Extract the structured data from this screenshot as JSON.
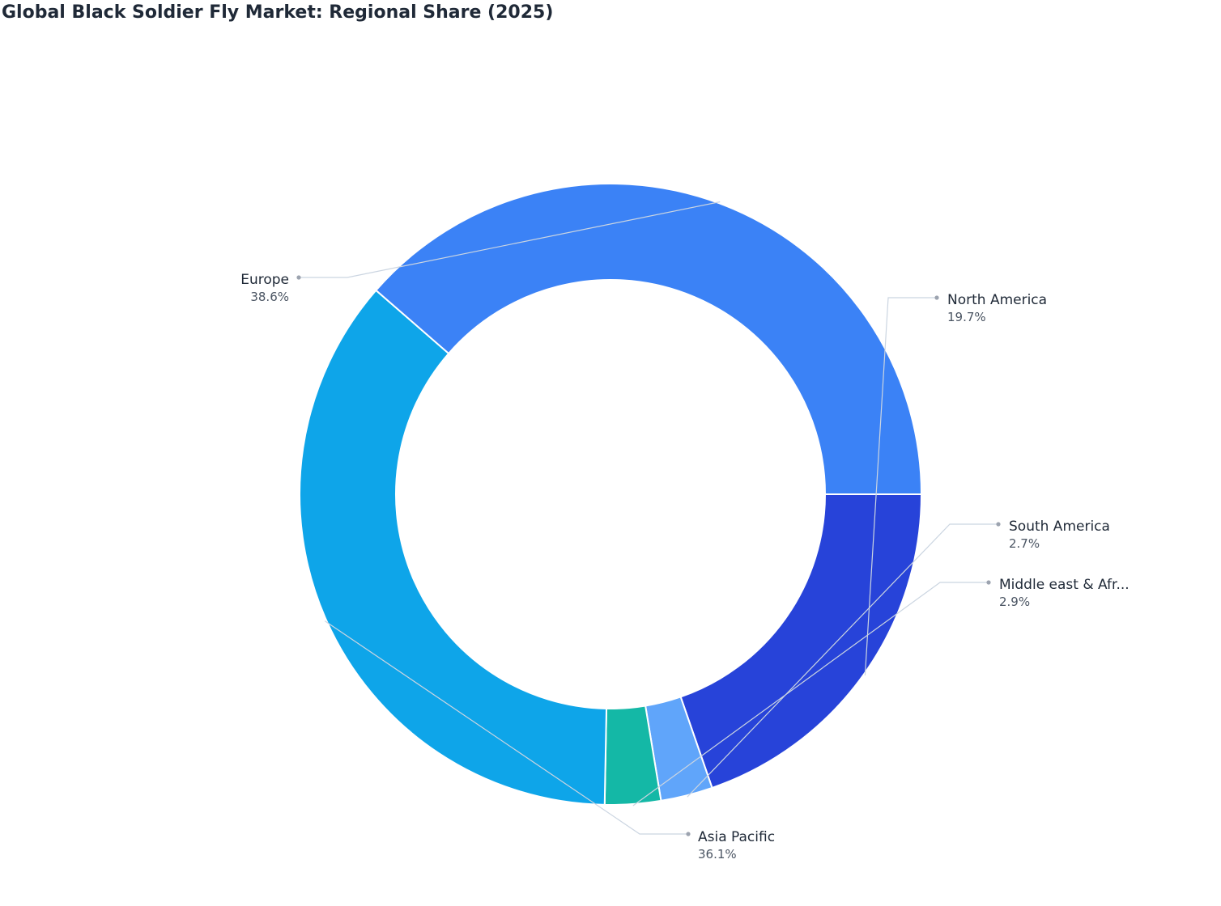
{
  "chart_data": {
    "type": "pie",
    "variant": "donut",
    "title": "Global Black Soldier Fly Market: Regional Share (2025)",
    "unit": "%",
    "slices": [
      {
        "label": "North America",
        "display_label": "North America",
        "value": 19.7,
        "value_text": "19.7%",
        "color": "#2743d9"
      },
      {
        "label": "South America",
        "display_label": "South America",
        "value": 2.7,
        "value_text": "2.7%",
        "color": "#60a5fa"
      },
      {
        "label": "Middle east & Africa",
        "display_label": "Middle east & Afr...",
        "value": 2.9,
        "value_text": "2.9%",
        "color": "#14b8a6"
      },
      {
        "label": "Asia Pacific",
        "display_label": "Asia Pacific",
        "value": 36.1,
        "value_text": "36.1%",
        "color": "#0ea5e9"
      },
      {
        "label": "Europe",
        "display_label": "Europe",
        "value": 38.6,
        "value_text": "38.6%",
        "color": "#3b82f6"
      }
    ],
    "start_angle_deg": 90,
    "direction": "clockwise",
    "labels": "outside with leader lines"
  }
}
